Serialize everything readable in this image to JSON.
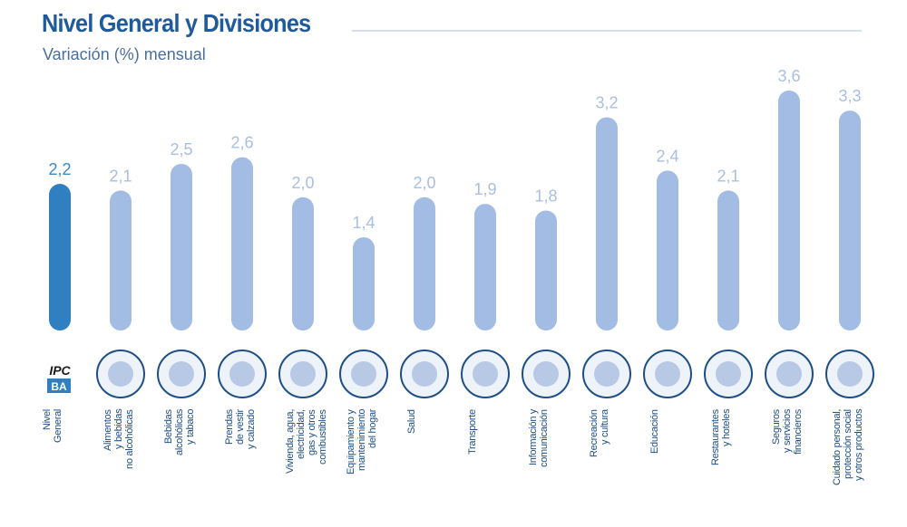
{
  "chart_data": {
    "type": "bar",
    "title": "Nivel General y Divisiones",
    "subtitle": "Variación (%) mensual",
    "logo": {
      "top": "IPC",
      "bottom": "BA"
    },
    "categories": [
      "Nivel\nGeneral",
      "Alimentos\ny bebidas\nno alcohólicas",
      "Bebidas\nalcohólicas\ny tabaco",
      "Prendas\nde vestir\ny calzado",
      "Vivienda, agua,\nelectricidad,\ngas y otros\ncombustibles",
      "Equipamiento y\nmantenimiento\ndel hogar",
      "Salud",
      "Transporte",
      "Información y\ncomunicación",
      "Recreación\ny cultura",
      "Educación",
      "Restaurantes\ny hoteles",
      "Seguros\ny servicios\nfinancieros",
      "Cuidado personal,\nprotección social\ny otros productos"
    ],
    "values": [
      2.2,
      2.1,
      2.5,
      2.6,
      2.0,
      1.4,
      2.0,
      1.9,
      1.8,
      3.2,
      2.4,
      2.1,
      3.6,
      3.3
    ],
    "value_labels": [
      "2,2",
      "2,1",
      "2,5",
      "2,6",
      "2,0",
      "1,4",
      "2,0",
      "1,9",
      "1,8",
      "3,2",
      "2,4",
      "2,1",
      "3,6",
      "3,3"
    ],
    "colors": [
      "#2f7fc1",
      "#a3bce3",
      "#a3bce3",
      "#a3bce3",
      "#a3bce3",
      "#a3bce3",
      "#a3bce3",
      "#a3bce3",
      "#a3bce3",
      "#a3bce3",
      "#a3bce3",
      "#a3bce3",
      "#a3bce3",
      "#a3bce3"
    ],
    "label_colors": [
      "#3d87c8",
      "#a9bfe0",
      "#a9bfe0",
      "#a9bfe0",
      "#a9bfe0",
      "#a9bfe0",
      "#a9bfe0",
      "#a9bfe0",
      "#a9bfe0",
      "#a9bfe0",
      "#a9bfe0",
      "#a9bfe0",
      "#a9bfe0",
      "#a9bfe0"
    ]
  }
}
